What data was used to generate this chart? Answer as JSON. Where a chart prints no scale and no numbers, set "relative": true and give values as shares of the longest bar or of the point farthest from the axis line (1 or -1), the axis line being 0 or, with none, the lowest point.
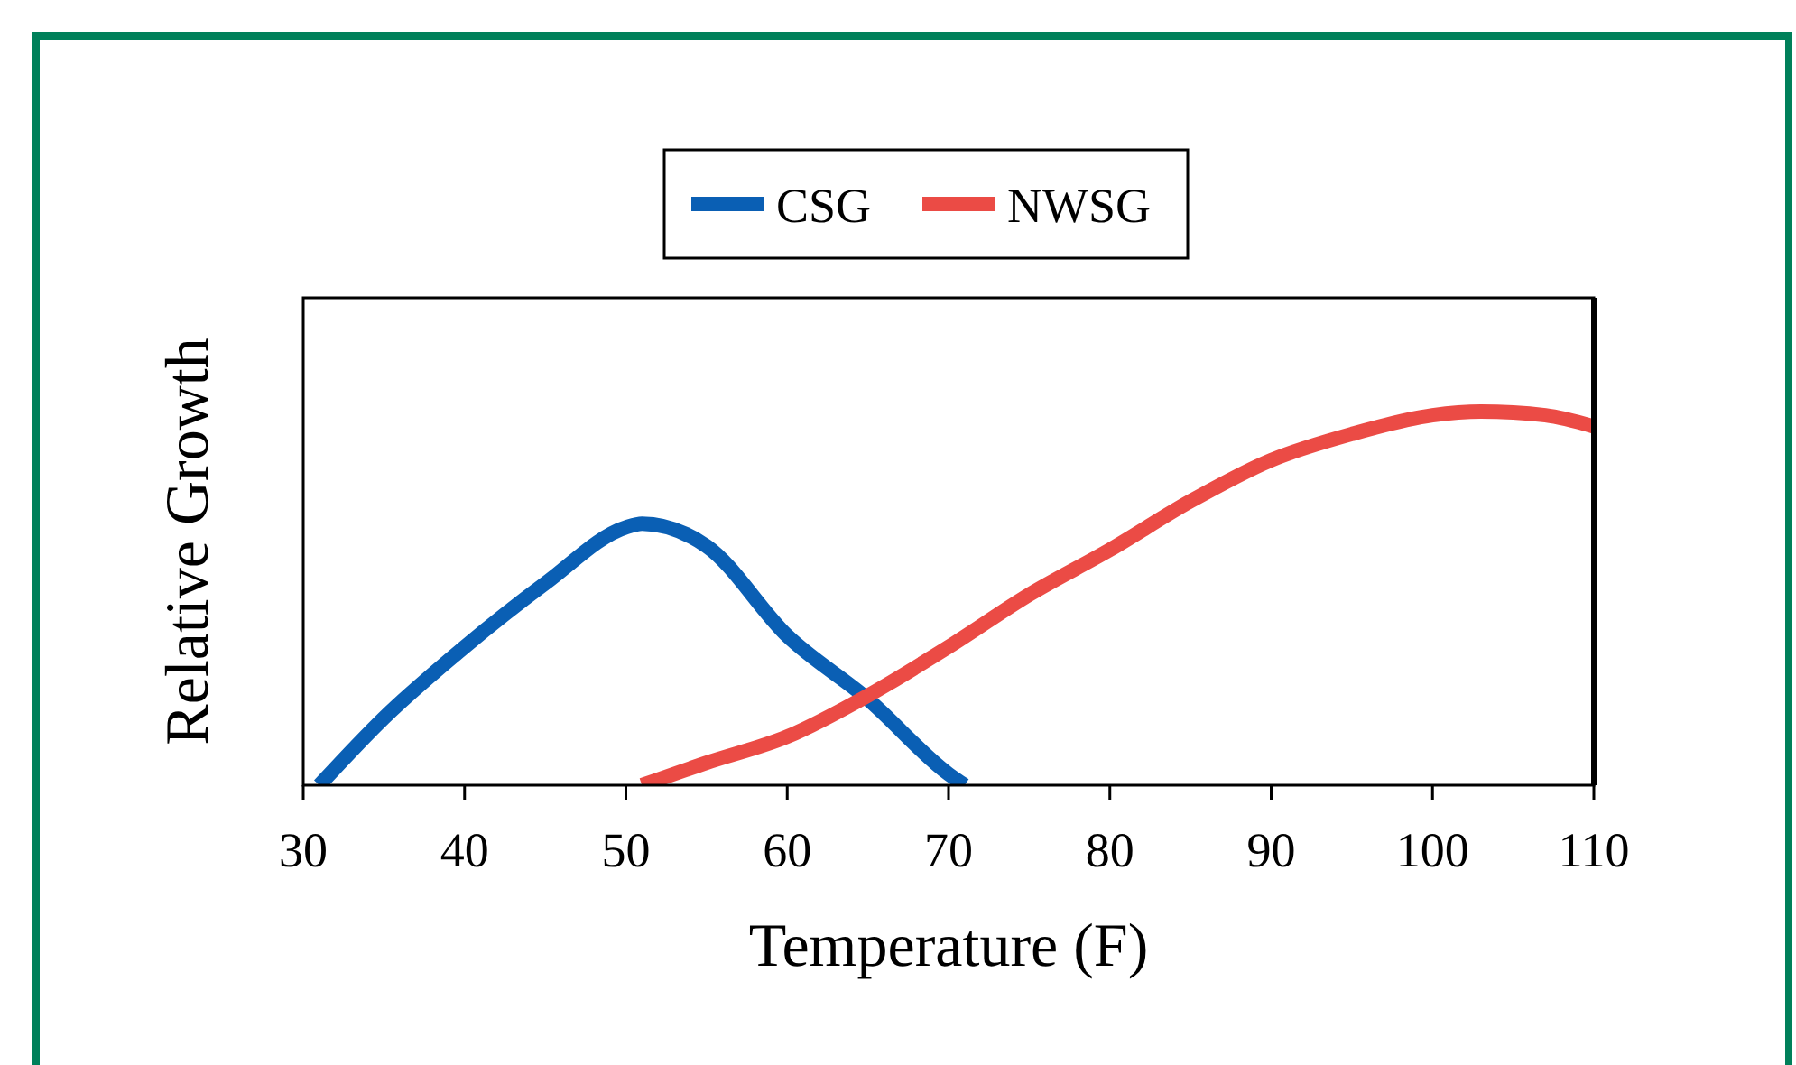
{
  "chart_data": {
    "type": "line",
    "xlabel": "Temperature (F)",
    "ylabel": "Relative Growth",
    "relative": true,
    "xlim": [
      30,
      110
    ],
    "xticks": [
      30,
      40,
      50,
      60,
      70,
      80,
      90,
      100,
      110
    ],
    "legend": "top",
    "grid": false,
    "series": [
      {
        "name": "CSG",
        "color": "#0a5fb4",
        "x": [
          31,
          35,
          40,
          45,
          50,
          51,
          55,
          60,
          65,
          70,
          71
        ],
        "values": [
          0,
          0.18,
          0.37,
          0.54,
          0.69,
          0.7,
          0.64,
          0.4,
          0.23,
          0.03,
          0
        ]
      },
      {
        "name": "NWSG",
        "color": "#eb4b45",
        "x": [
          51,
          55,
          60,
          65,
          70,
          75,
          80,
          85,
          90,
          95,
          100,
          103,
          107,
          110
        ],
        "values": [
          0,
          0.06,
          0.13,
          0.24,
          0.37,
          0.51,
          0.63,
          0.76,
          0.87,
          0.94,
          0.99,
          1,
          0.99,
          0.96
        ]
      }
    ]
  }
}
